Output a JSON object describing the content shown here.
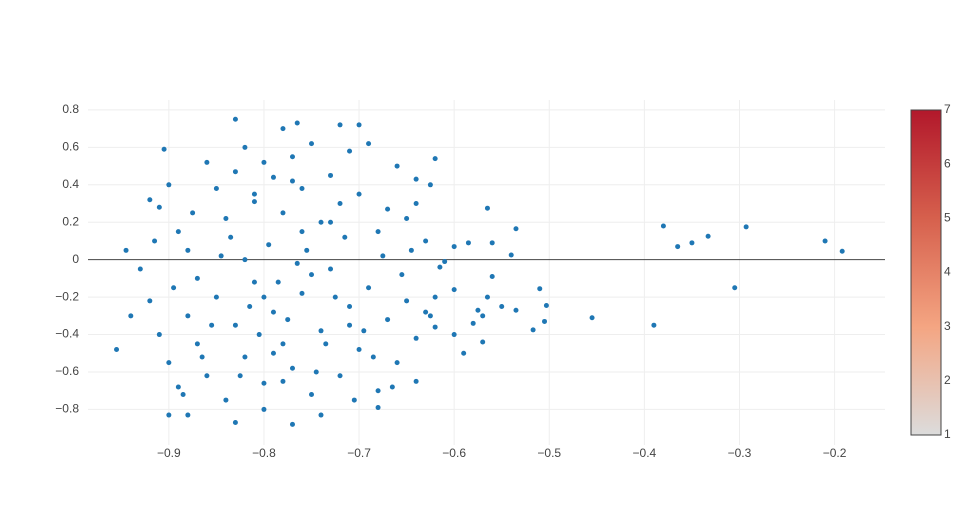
{
  "chart_data": {
    "type": "scatter",
    "color": "#1f77b4",
    "xlim": [
      -0.985,
      -0.147
    ],
    "ylim": [
      -0.99,
      0.853
    ],
    "grid": true,
    "zeroline": true,
    "xticks": [
      {
        "value": -0.9,
        "label": "−0.9"
      },
      {
        "value": -0.8,
        "label": "−0.8"
      },
      {
        "value": -0.7,
        "label": "−0.7"
      },
      {
        "value": -0.6,
        "label": "−0.6"
      },
      {
        "value": -0.5,
        "label": "−0.5"
      },
      {
        "value": -0.4,
        "label": "−0.4"
      },
      {
        "value": -0.3,
        "label": "−0.3"
      },
      {
        "value": -0.2,
        "label": "−0.2"
      }
    ],
    "yticks": [
      0.8,
      0.6,
      0.4,
      0.2,
      0,
      {
        "value": -0.2,
        "label": "−0.2"
      },
      {
        "value": -0.4,
        "label": "−0.4"
      },
      {
        "value": -0.6,
        "label": "−0.6"
      },
      {
        "value": -0.8,
        "label": "−0.8"
      }
    ],
    "colorbar": {
      "range": [
        1,
        7
      ],
      "ticks": [
        1,
        2,
        3,
        4,
        5,
        6,
        7
      ],
      "colors": [
        "#dcdcdc",
        "#f4a582",
        "#d6604d",
        "#b2182b"
      ]
    },
    "x": [
      -0.38,
      -0.365,
      -0.35,
      -0.333,
      -0.293,
      -0.305,
      -0.21,
      -0.192,
      -0.39,
      -0.455,
      -0.503,
      -0.505,
      -0.51,
      -0.517,
      -0.535,
      -0.54,
      -0.535,
      -0.56,
      -0.565,
      -0.56,
      -0.565,
      -0.55,
      -0.575,
      -0.57,
      -0.57,
      -0.585,
      -0.6,
      -0.6,
      -0.59,
      -0.6,
      -0.58,
      -0.62,
      -0.625,
      -0.61,
      -0.615,
      -0.62,
      -0.64,
      -0.64,
      -0.7,
      -0.72,
      -0.765,
      -0.78,
      -0.83,
      -0.905,
      -0.945,
      -0.955,
      -0.94,
      -0.9,
      -0.88,
      -0.83,
      -0.77,
      -0.8,
      -0.74,
      -0.68,
      -0.92,
      -0.91,
      -0.9,
      -0.89,
      -0.88,
      -0.87,
      -0.86,
      -0.85,
      -0.84,
      -0.83,
      -0.82,
      -0.81,
      -0.8,
      -0.79,
      -0.78,
      -0.77,
      -0.76,
      -0.75,
      -0.74,
      -0.73,
      -0.72,
      -0.71,
      -0.7,
      -0.69,
      -0.68,
      -0.67,
      -0.66,
      -0.65,
      -0.64,
      -0.63,
      -0.93,
      -0.92,
      -0.91,
      -0.9,
      -0.89,
      -0.88,
      -0.87,
      -0.86,
      -0.85,
      -0.84,
      -0.83,
      -0.82,
      -0.81,
      -0.8,
      -0.79,
      -0.78,
      -0.77,
      -0.76,
      -0.75,
      -0.74,
      -0.73,
      -0.72,
      -0.71,
      -0.7,
      -0.69,
      -0.68,
      -0.67,
      -0.66,
      -0.65,
      -0.64,
      -0.63,
      -0.62,
      -0.915,
      -0.895,
      -0.875,
      -0.855,
      -0.835,
      -0.815,
      -0.795,
      -0.775,
      -0.755,
      -0.735,
      -0.715,
      -0.695,
      -0.675,
      -0.655,
      -0.785,
      -0.765,
      -0.805,
      -0.825,
      -0.845,
      -0.865,
      -0.885,
      -0.745,
      -0.725,
      -0.705,
      -0.685,
      -0.665,
      -0.645,
      -0.625,
      -0.76,
      -0.78,
      -0.81,
      -0.79,
      -0.77,
      -0.75,
      -0.73,
      -0.71,
      -0.8,
      -0.82
    ],
    "y": [
      0.18,
      0.07,
      0.09,
      0.125,
      0.175,
      -0.15,
      0.1,
      0.045,
      -0.35,
      -0.31,
      -0.245,
      -0.33,
      -0.155,
      -0.375,
      -0.27,
      0.025,
      0.165,
      0.09,
      0.275,
      -0.09,
      -0.2,
      -0.25,
      -0.27,
      -0.3,
      -0.44,
      0.09,
      0.07,
      -0.16,
      -0.5,
      -0.4,
      -0.34,
      0.54,
      0.4,
      -0.01,
      -0.04,
      -0.36,
      -0.65,
      0.43,
      0.72,
      0.72,
      0.73,
      0.7,
      0.75,
      0.59,
      0.05,
      -0.48,
      -0.3,
      -0.83,
      -0.83,
      -0.87,
      -0.88,
      -0.8,
      -0.83,
      -0.79,
      0.32,
      0.28,
      0.4,
      0.15,
      0.05,
      -0.1,
      0.52,
      0.38,
      0.22,
      0.47,
      0.6,
      0.31,
      0.52,
      0.44,
      0.25,
      0.55,
      0.38,
      0.62,
      0.2,
      0.45,
      0.3,
      0.58,
      0.35,
      0.62,
      0.15,
      0.27,
      0.5,
      0.22,
      0.3,
      0.1,
      -0.05,
      -0.22,
      -0.4,
      -0.55,
      -0.68,
      -0.3,
      -0.45,
      -0.62,
      -0.2,
      -0.75,
      -0.35,
      -0.52,
      -0.12,
      -0.66,
      -0.28,
      -0.45,
      -0.58,
      -0.18,
      -0.72,
      -0.38,
      -0.05,
      -0.62,
      -0.25,
      -0.48,
      -0.15,
      -0.7,
      -0.32,
      -0.55,
      -0.22,
      -0.42,
      -0.28,
      -0.2,
      0.1,
      -0.15,
      0.25,
      -0.35,
      0.12,
      -0.25,
      0.08,
      -0.32,
      0.05,
      -0.45,
      0.12,
      -0.38,
      0.02,
      -0.08,
      -0.12,
      -0.02,
      -0.4,
      -0.62,
      0.02,
      -0.52,
      -0.72,
      -0.6,
      -0.2,
      -0.75,
      -0.52,
      -0.68,
      0.05,
      -0.3,
      0.15,
      -0.65,
      0.35,
      -0.5,
      0.42,
      -0.08,
      0.2,
      -0.35,
      -0.2,
      0
    ]
  }
}
